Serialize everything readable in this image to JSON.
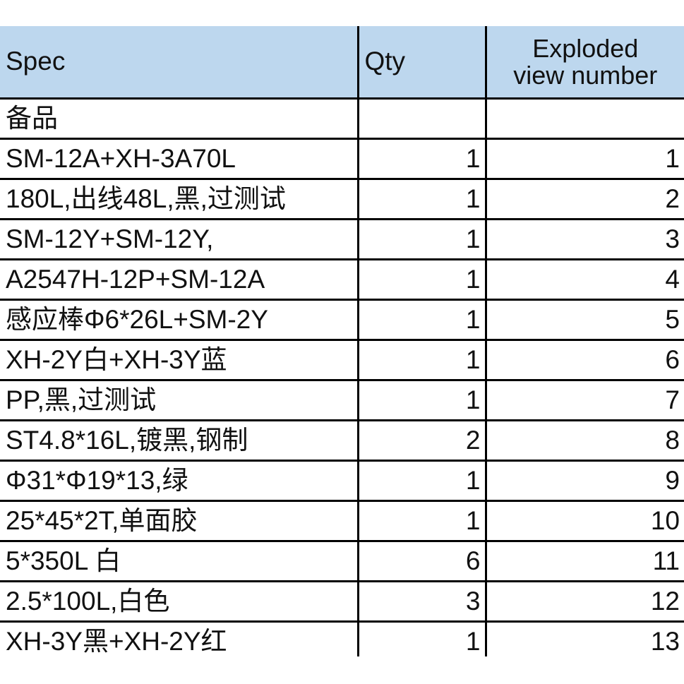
{
  "header": {
    "spec": "Spec",
    "qty": "Qty",
    "exploded_line1": "Exploded",
    "exploded_line2": "view number"
  },
  "section": {
    "label": "备品"
  },
  "rows": [
    {
      "spec": "SM-12A+XH-3A70L",
      "qty": "1",
      "num": "1"
    },
    {
      "spec": "180L,出线48L,黑,过测试",
      "qty": "1",
      "num": "2"
    },
    {
      "spec": "SM-12Y+SM-12Y,",
      "qty": "1",
      "num": "3"
    },
    {
      "spec": "A2547H-12P+SM-12A",
      "qty": "1",
      "num": "4"
    },
    {
      "spec": "感应棒Φ6*26L+SM-2Y",
      "qty": "1",
      "num": "5"
    },
    {
      "spec": "XH-2Y白+XH-3Y蓝",
      "qty": "1",
      "num": "6"
    },
    {
      "spec": "PP,黑,过测试",
      "qty": "1",
      "num": "7"
    },
    {
      "spec": "ST4.8*16L,镀黑,钢制",
      "qty": "2",
      "num": "8"
    },
    {
      "spec": "Φ31*Φ19*13,绿",
      "qty": "1",
      "num": "9"
    },
    {
      "spec": "25*45*2T,单面胶",
      "qty": "1",
      "num": "10"
    },
    {
      "spec": "5*350L 白",
      "qty": "6",
      "num": "11"
    },
    {
      "spec": "2.5*100L,白色",
      "qty": "3",
      "num": "12"
    },
    {
      "spec": "XH-3Y黑+XH-2Y红",
      "qty": "1",
      "num": "13"
    }
  ],
  "colors": {
    "header_bg": "#bdd7ee",
    "border": "#000000"
  }
}
